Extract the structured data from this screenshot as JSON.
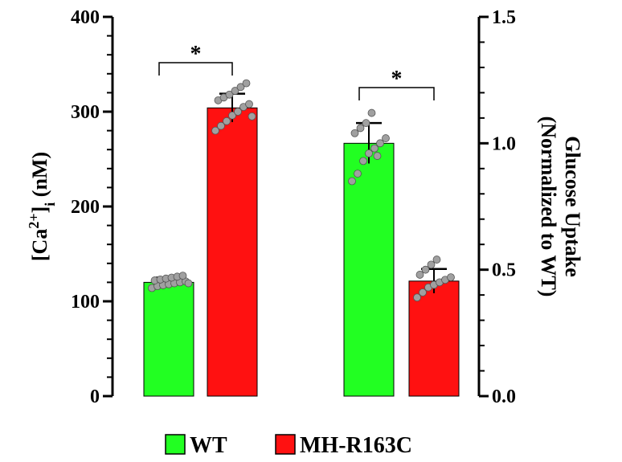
{
  "chart_data": {
    "type": "bar",
    "colors": {
      "WT": "#22ff22",
      "MH-R163C": "#ff1111",
      "point": "#a0a0a0",
      "outline": "#000000"
    },
    "left_axis": {
      "title_main": "[Ca",
      "title_sup": "2+",
      "title_close": "]",
      "title_sub": "i",
      "title_unit": " (nM)",
      "ylim": [
        0,
        400
      ],
      "ticks": [
        0,
        100,
        200,
        300,
        400
      ],
      "tick_labels": [
        "0",
        "100",
        "200",
        "300",
        "400"
      ]
    },
    "right_axis": {
      "title_line1": "Glucose Uptake",
      "title_line2": "(Normalized to WT)",
      "ylim": [
        0,
        1.5
      ],
      "ticks": [
        0,
        0.5,
        1.0,
        1.5
      ],
      "tick_labels": [
        "0.0",
        "0.5",
        "1.0",
        "1.5"
      ]
    },
    "bars": [
      {
        "group": "WT",
        "axis": "left",
        "value": 120,
        "sd": 5,
        "points": [
          114,
          116,
          117,
          118,
          119,
          120,
          121,
          122,
          123,
          124,
          125,
          126,
          127,
          119
        ]
      },
      {
        "group": "MH-R163C",
        "axis": "left",
        "value": 304,
        "sd": 15,
        "points": [
          280,
          285,
          290,
          296,
          300,
          305,
          308,
          312,
          315,
          318,
          322,
          326,
          330,
          295
        ]
      },
      {
        "group": "WT",
        "axis": "right",
        "value": 1.0,
        "sd": 0.08,
        "points": [
          0.85,
          0.88,
          0.93,
          0.96,
          0.98,
          1.0,
          1.02,
          1.04,
          1.06,
          1.08,
          1.12,
          0.95
        ]
      },
      {
        "group": "MH-R163C",
        "axis": "right",
        "value": 0.455,
        "sd": 0.048,
        "points": [
          0.39,
          0.41,
          0.43,
          0.44,
          0.45,
          0.46,
          0.47,
          0.48,
          0.5,
          0.52,
          0.54
        ]
      }
    ],
    "significance": [
      {
        "label": "*",
        "from_bar": 0,
        "to_bar": 1
      },
      {
        "label": "*",
        "from_bar": 2,
        "to_bar": 3
      }
    ],
    "legend": [
      {
        "label": "WT",
        "color": "#22ff22"
      },
      {
        "label": "MH-R163C",
        "color": "#ff1111"
      }
    ],
    "legend_position": "bottom-center",
    "grid": false
  }
}
